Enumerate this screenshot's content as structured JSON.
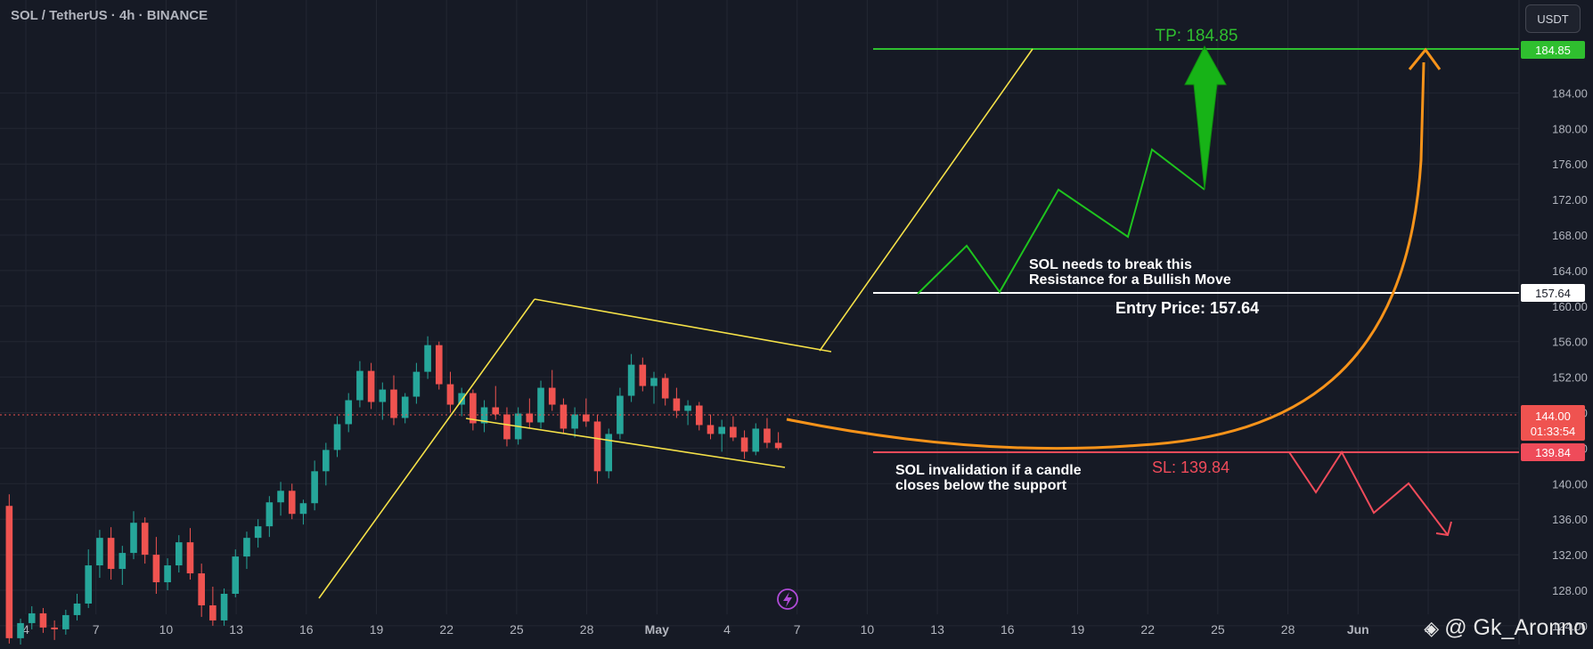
{
  "header": {
    "symbol": "SOL / TetherUS · 4h · BINANCE",
    "currency_button": "USDT"
  },
  "watermark": {
    "handle": "@ Gk_Aronno"
  },
  "colors": {
    "background": "#161a25",
    "grid": "#232733",
    "up_candle": "#26a69a",
    "down_candle": "#ef5350",
    "channel": "#f5e148",
    "bull_path": "#1ec41e",
    "bear_path": "#ef4b5a",
    "curve": "#f7931a",
    "tp_line": "#2fbf2f",
    "entry_line": "#ffffff",
    "sl_line": "#ef4b5a"
  },
  "chart_data": {
    "type": "candlestick",
    "title": "SOL / TetherUS · 4h · BINANCE",
    "y_range": [
      122,
      191
    ],
    "y_ticks": [
      "184.00",
      "180.00",
      "176.00",
      "172.00",
      "168.00",
      "164.00",
      "160.00",
      "156.00",
      "152.00",
      "148.00",
      "144.00",
      "140.00",
      "136.00",
      "132.00",
      "128.00",
      "124.00"
    ],
    "x_ticks": [
      "4",
      "7",
      "10",
      "13",
      "16",
      "19",
      "22",
      "25",
      "28",
      "May",
      "4",
      "7",
      "10",
      "13",
      "16",
      "19",
      "22",
      "25",
      "28",
      "Jun",
      "4"
    ],
    "candles_ohlc": [
      [
        137.5,
        138.8,
        122.0,
        122.6
      ],
      [
        122.6,
        124.8,
        121.2,
        124.3
      ],
      [
        124.3,
        126.2,
        123.6,
        125.4
      ],
      [
        125.4,
        126.0,
        123.2,
        123.8
      ],
      [
        123.8,
        124.6,
        122.4,
        123.6
      ],
      [
        123.6,
        125.8,
        123.0,
        125.2
      ],
      [
        125.2,
        127.6,
        124.6,
        126.5
      ],
      [
        126.5,
        132.6,
        126.0,
        130.8
      ],
      [
        130.8,
        134.8,
        129.4,
        133.9
      ],
      [
        133.9,
        135.1,
        129.2,
        130.4
      ],
      [
        130.4,
        133.0,
        128.6,
        132.2
      ],
      [
        132.2,
        136.9,
        131.5,
        135.6
      ],
      [
        135.6,
        136.2,
        131.0,
        132.0
      ],
      [
        132.0,
        134.0,
        127.6,
        128.9
      ],
      [
        128.9,
        131.6,
        128.0,
        130.8
      ],
      [
        130.8,
        134.2,
        130.0,
        133.4
      ],
      [
        133.4,
        135.0,
        129.2,
        129.9
      ],
      [
        129.9,
        131.0,
        125.0,
        126.3
      ],
      [
        126.3,
        128.4,
        124.0,
        124.6
      ],
      [
        124.6,
        128.2,
        124.0,
        127.6
      ],
      [
        127.6,
        132.6,
        127.2,
        131.8
      ],
      [
        131.8,
        134.6,
        130.4,
        133.9
      ],
      [
        133.9,
        136.0,
        132.8,
        135.2
      ],
      [
        135.2,
        138.6,
        134.0,
        137.9
      ],
      [
        137.9,
        140.2,
        136.4,
        139.2
      ],
      [
        139.2,
        140.0,
        136.0,
        136.6
      ],
      [
        136.6,
        138.2,
        135.4,
        137.8
      ],
      [
        137.8,
        142.6,
        137.0,
        141.4
      ],
      [
        141.4,
        144.6,
        139.8,
        143.8
      ],
      [
        143.8,
        147.6,
        143.0,
        146.7
      ],
      [
        146.7,
        150.2,
        145.8,
        149.4
      ],
      [
        149.4,
        153.8,
        148.6,
        152.7
      ],
      [
        152.7,
        153.6,
        148.4,
        149.2
      ],
      [
        149.2,
        151.4,
        147.2,
        150.6
      ],
      [
        150.6,
        152.2,
        146.6,
        147.4
      ],
      [
        147.4,
        150.2,
        146.8,
        149.8
      ],
      [
        149.8,
        153.6,
        149.0,
        152.6
      ],
      [
        152.6,
        156.6,
        151.8,
        155.6
      ],
      [
        155.6,
        156.0,
        150.6,
        151.2
      ],
      [
        151.2,
        152.6,
        148.0,
        148.9
      ],
      [
        148.9,
        150.8,
        147.6,
        150.2
      ],
      [
        150.2,
        150.6,
        146.0,
        146.8
      ],
      [
        146.8,
        149.4,
        145.8,
        148.6
      ],
      [
        148.6,
        151.0,
        147.2,
        147.8
      ],
      [
        147.8,
        148.6,
        144.2,
        145.0
      ],
      [
        145.0,
        148.6,
        144.4,
        147.9
      ],
      [
        147.9,
        149.6,
        146.2,
        146.9
      ],
      [
        146.9,
        151.6,
        146.2,
        150.8
      ],
      [
        150.8,
        152.8,
        148.2,
        148.9
      ],
      [
        148.9,
        149.6,
        145.6,
        146.2
      ],
      [
        146.2,
        148.6,
        145.2,
        147.8
      ],
      [
        147.8,
        149.6,
        146.4,
        147.0
      ],
      [
        147.0,
        147.8,
        140.0,
        141.4
      ],
      [
        141.4,
        146.2,
        140.6,
        145.6
      ],
      [
        145.6,
        150.8,
        145.0,
        149.9
      ],
      [
        149.9,
        154.6,
        149.2,
        153.4
      ],
      [
        153.4,
        154.2,
        150.4,
        151.0
      ],
      [
        151.0,
        152.6,
        149.0,
        151.9
      ],
      [
        151.9,
        152.4,
        148.8,
        149.6
      ],
      [
        149.6,
        150.8,
        147.4,
        148.2
      ],
      [
        148.2,
        149.4,
        146.6,
        148.8
      ],
      [
        148.8,
        149.2,
        146.0,
        146.6
      ],
      [
        146.6,
        147.8,
        145.0,
        145.6
      ],
      [
        145.6,
        147.2,
        143.6,
        146.4
      ],
      [
        146.4,
        147.6,
        144.8,
        145.2
      ],
      [
        145.2,
        146.0,
        142.8,
        143.6
      ],
      [
        143.6,
        146.8,
        143.2,
        146.2
      ],
      [
        146.2,
        147.4,
        144.0,
        144.6
      ],
      [
        144.6,
        145.8,
        143.8,
        144.0
      ]
    ],
    "levels": [
      {
        "label": "TP: 184.85",
        "value": 184.85
      },
      {
        "label": "Entry Price: 157.64",
        "value": 157.64
      },
      {
        "label": "SL: 139.84",
        "value": 139.84
      }
    ],
    "current_price": "144.00",
    "countdown": "01:33:54",
    "annotations": [
      "SOL needs to break this",
      "Resistance for a Bullish Move",
      "SOL invalidation if a candle",
      "closes below the support"
    ]
  }
}
